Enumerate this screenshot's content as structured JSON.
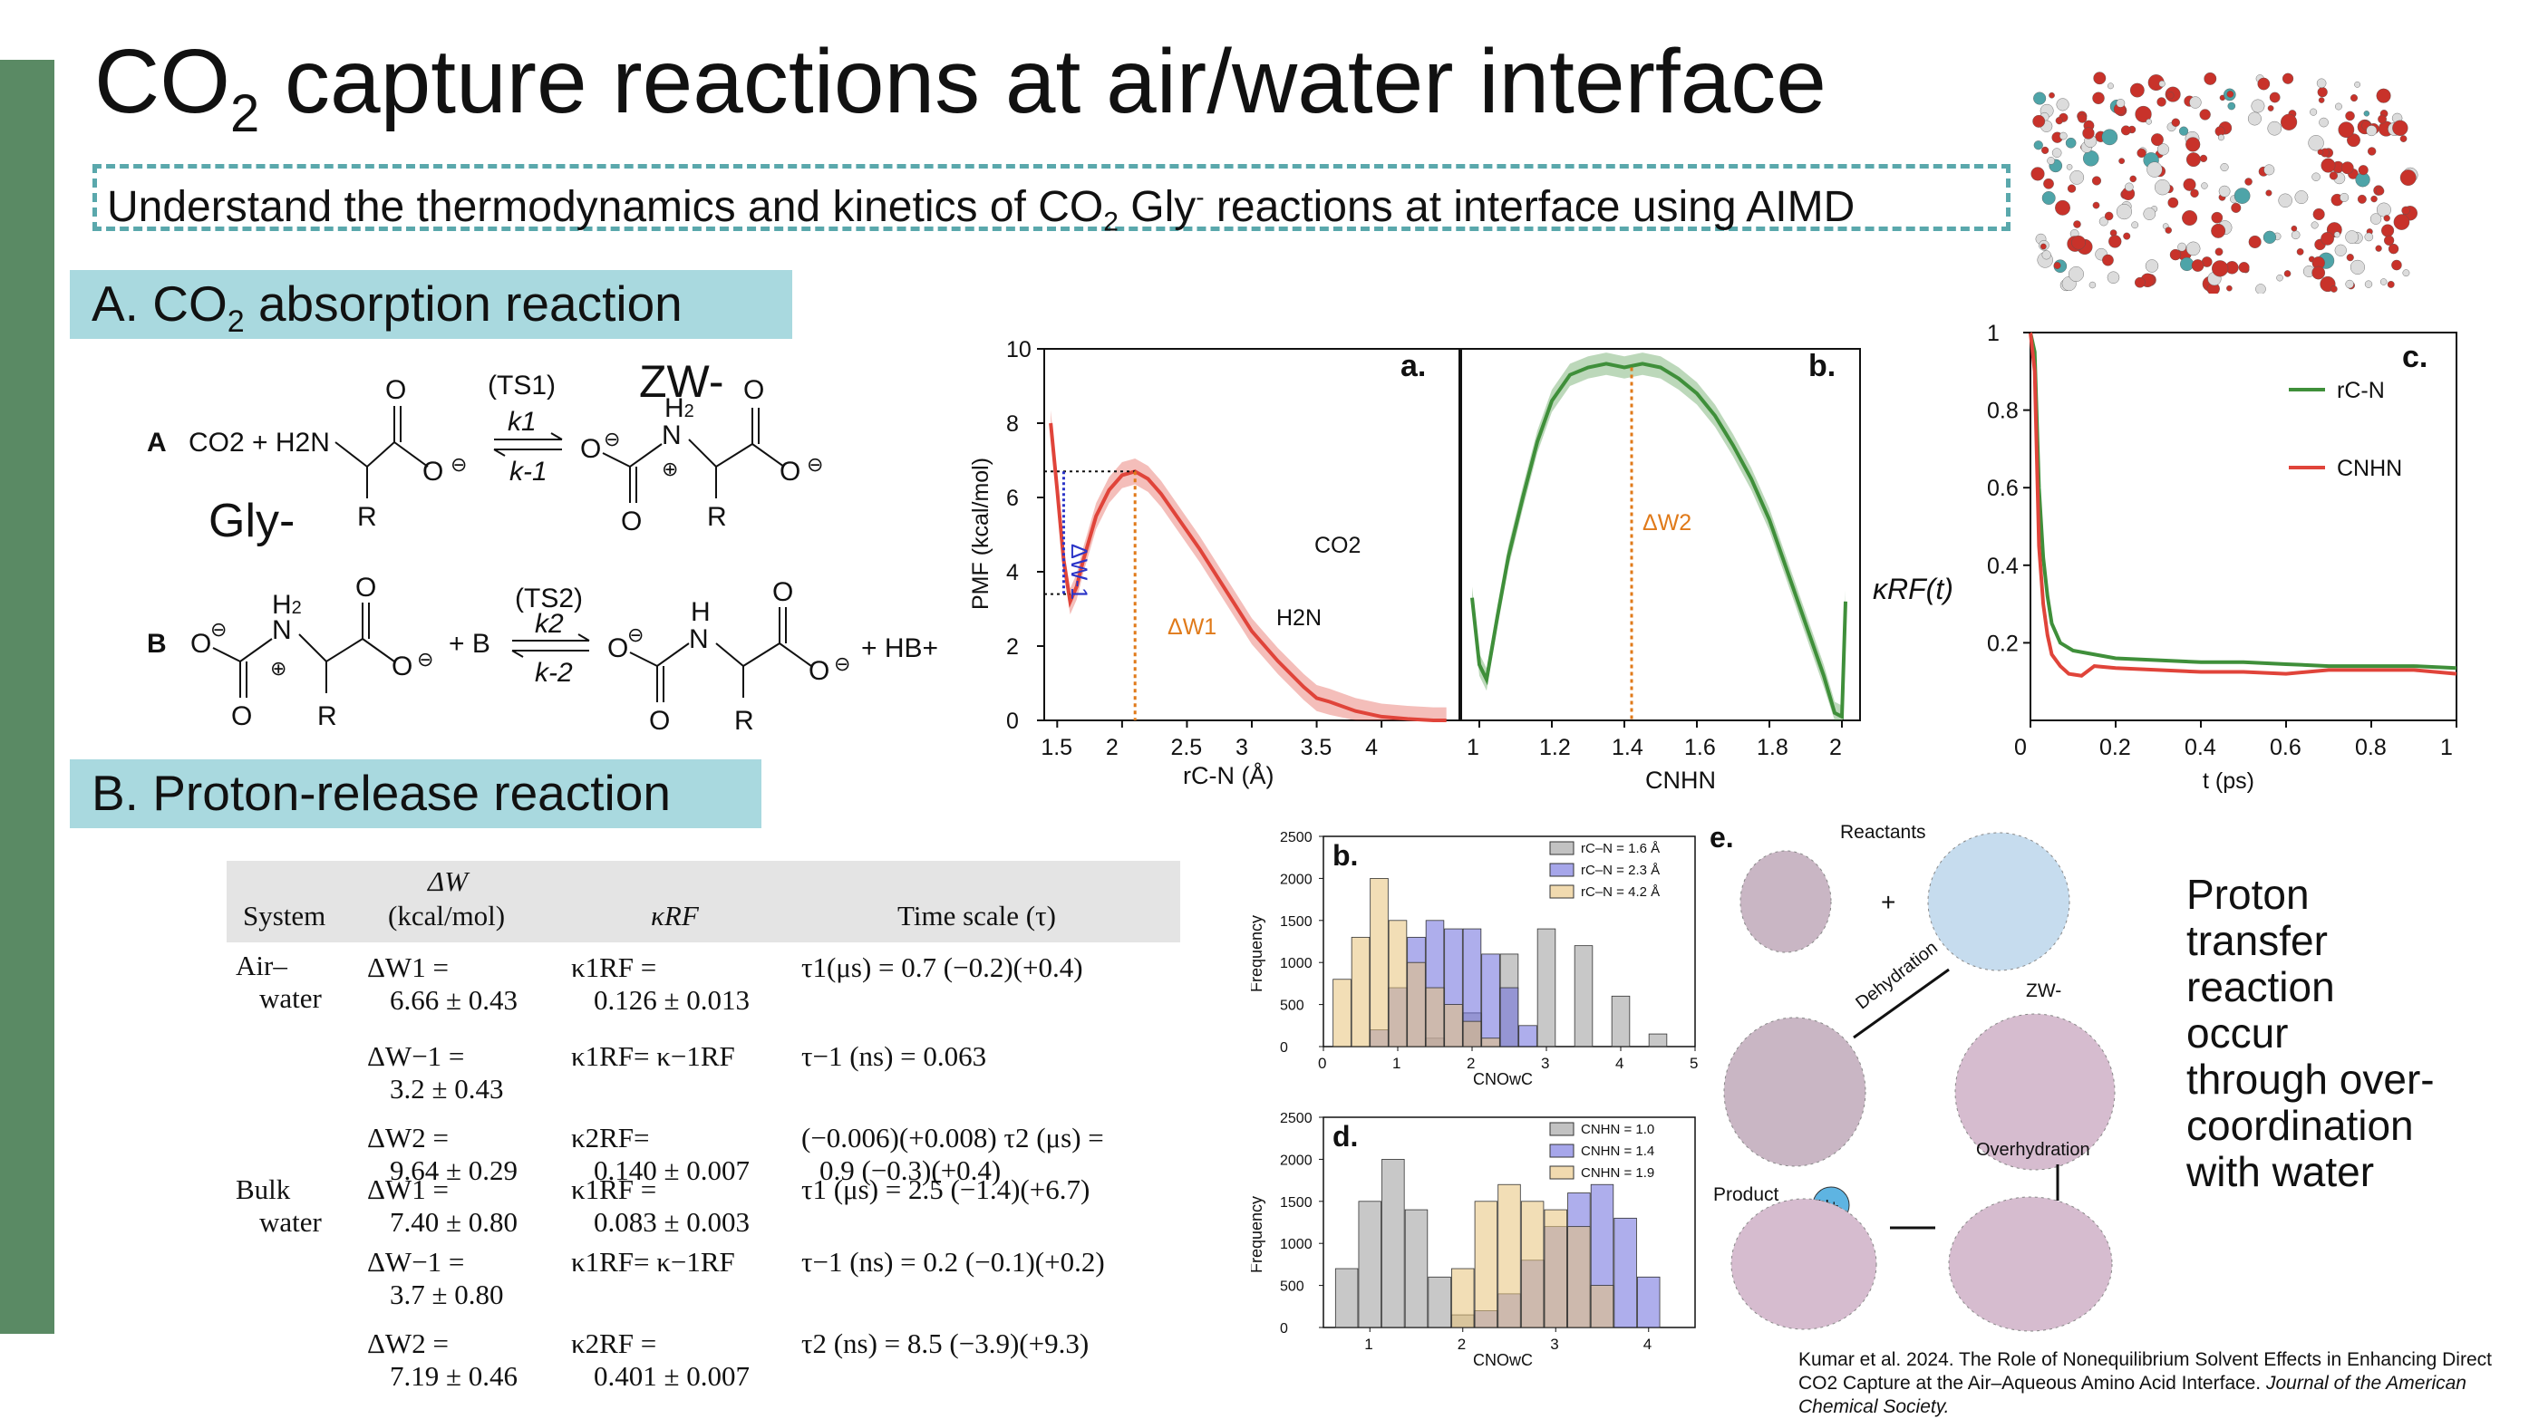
{
  "slide": {
    "title_pre": "CO",
    "title_sub": "2",
    "title_post": " capture reactions at air/water interface",
    "subtitle_pre": "Understand the thermodynamics and kinetics of CO",
    "subtitle_sub": "2",
    "subtitle_mid": " Gly",
    "subtitle_sup": "-",
    "subtitle_post": " reactions at interface using AIMD",
    "section_a_pre": "A. CO",
    "section_a_sub": "2",
    "section_a_post": " absorption reaction",
    "section_b": "B. Proton-release reaction",
    "proton_text": [
      "Proton",
      "transfer",
      "reaction",
      "occur",
      "through over-",
      "coordination",
      "with water"
    ],
    "citation_main": "Kumar et al. 2024. The Role of Nonequilibrium Solvent Effects in Enhancing Direct CO2 Capture at the Air–Aqueous Amino Acid Interface. ",
    "citation_journal": "Journal of the American Chemical Society."
  },
  "reactions": {
    "a_label": "A",
    "b_label": "B",
    "zw_label": "ZW-",
    "gly_label": "Gly-",
    "ts1": "(TS1)",
    "k1": "k1",
    "km1": "k-1",
    "ts2": "(TS2)",
    "k2": "k2",
    "km2": "k-2",
    "a_reactants": "CO2 + H2N",
    "b_plus_b": "+ B",
    "b_product_tail": "+ HB+"
  },
  "table": {
    "headers": [
      "System",
      "ΔW",
      "(kcal/mol)",
      "κRF",
      "Time scale (τ)"
    ],
    "systems": [
      "Air–",
      "water",
      "Bulk",
      "water"
    ],
    "rows": [
      {
        "dw1": "ΔW1 =",
        "dw2": "6.66 ± 0.43",
        "k1": "κ1RF =",
        "k2": "0.126 ± 0.013",
        "t1": "τ1(μs) = 0.7 (−0.2)(+0.4)",
        "t2": ""
      },
      {
        "dw1": "ΔW−1 =",
        "dw2": "3.2 ± 0.43",
        "k1": "κ1RF= κ−1RF",
        "k2": "",
        "t1": "τ−1 (ns) = 0.063",
        "t2": ""
      },
      {
        "dw1": "ΔW2 =",
        "dw2": "9.64 ± 0.29",
        "k1": "κ2RF=",
        "k2": "0.140 ± 0.007",
        "t1": "(−0.006)(+0.008) τ2 (μs) =",
        "t2": "0.9 (−0.3)(+0.4)"
      },
      {
        "dw1": "ΔW1 =",
        "dw2": "7.40 ± 0.80",
        "k1": "κ1RF =",
        "k2": "0.083 ± 0.003",
        "t1": "τ1 (μs) = 2.5 (−1.4)(+6.7)",
        "t2": ""
      },
      {
        "dw1": "ΔW−1 =",
        "dw2": "3.7 ± 0.80",
        "k1": "κ1RF= κ−1RF",
        "k2": "",
        "t1": "τ−1 (ns) = 0.2 (−0.1)(+0.2)",
        "t2": ""
      },
      {
        "dw1": "ΔW2 =",
        "dw2": "7.19 ± 0.46",
        "k1": "κ2RF =",
        "k2": "0.401 ± 0.007",
        "t1": "τ2 (ns) = 8.5 (−3.9)(+9.3)",
        "t2": ""
      }
    ]
  },
  "chart_data": [
    {
      "type": "area",
      "panel": "a.",
      "xlabel": "rC-N (Å)",
      "ylabel": "PMF (kcal/mol)",
      "xlim": [
        1.4,
        4.6
      ],
      "ylim": [
        0,
        10
      ],
      "xticks": [
        "1.5",
        "2",
        "2.5",
        "3",
        "3.5",
        "4"
      ],
      "yticks": [
        "0",
        "2",
        "4",
        "6",
        "8",
        "10"
      ],
      "series": [
        {
          "color": "#e0443a",
          "x": [
            1.45,
            1.5,
            1.55,
            1.6,
            1.65,
            1.7,
            1.8,
            1.9,
            2.0,
            2.1,
            2.2,
            2.3,
            2.4,
            2.6,
            2.8,
            3.0,
            3.2,
            3.4,
            3.5,
            3.6,
            3.8,
            4.0,
            4.2,
            4.4,
            4.5
          ],
          "y": [
            8.0,
            6.2,
            4.3,
            3.2,
            3.6,
            4.3,
            5.5,
            6.2,
            6.6,
            6.7,
            6.5,
            6.1,
            5.6,
            4.6,
            3.5,
            2.4,
            1.6,
            0.9,
            0.6,
            0.5,
            0.25,
            0.1,
            0.04,
            0.0,
            0.0
          ]
        }
      ],
      "annotations": [
        "ΔW-1",
        "ΔW1",
        "CO2",
        "H2N"
      ]
    },
    {
      "type": "area",
      "panel": "b.",
      "xlabel": "CNHN",
      "xlim": [
        0.95,
        2.05
      ],
      "ylim": [
        0,
        10
      ],
      "xticks": [
        "1",
        "1.2",
        "1.4",
        "1.6",
        "1.8",
        "2"
      ],
      "series": [
        {
          "color": "#3f8f3a",
          "x": [
            0.98,
            1.0,
            1.02,
            1.05,
            1.08,
            1.12,
            1.16,
            1.2,
            1.25,
            1.3,
            1.35,
            1.4,
            1.45,
            1.5,
            1.55,
            1.6,
            1.65,
            1.7,
            1.75,
            1.8,
            1.85,
            1.9,
            1.95,
            1.98,
            2.0,
            2.01
          ],
          "y": [
            3.3,
            1.5,
            1.1,
            2.8,
            4.4,
            6.0,
            7.5,
            8.6,
            9.3,
            9.5,
            9.6,
            9.5,
            9.6,
            9.5,
            9.2,
            8.8,
            8.2,
            7.4,
            6.5,
            5.4,
            4.0,
            2.6,
            1.2,
            0.2,
            0.1,
            3.2
          ]
        }
      ],
      "annotations": [
        "ΔW2"
      ]
    },
    {
      "type": "line",
      "panel": "c.",
      "xlabel": "t (ps)",
      "ylabel": "κRF(t)",
      "xlim": [
        0,
        1
      ],
      "ylim": [
        0,
        1
      ],
      "xticks": [
        "0",
        "0.2",
        "0.4",
        "0.6",
        "0.8",
        "1"
      ],
      "yticks": [
        "0.2",
        "0.4",
        "0.6",
        "0.8",
        "1"
      ],
      "series": [
        {
          "name": "rC-N",
          "color": "#3f8f3a",
          "x": [
            0.0,
            0.01,
            0.02,
            0.03,
            0.04,
            0.05,
            0.07,
            0.1,
            0.15,
            0.2,
            0.3,
            0.4,
            0.5,
            0.6,
            0.7,
            0.8,
            0.9,
            1.0
          ],
          "y": [
            1.0,
            0.95,
            0.6,
            0.42,
            0.32,
            0.25,
            0.2,
            0.18,
            0.17,
            0.16,
            0.155,
            0.15,
            0.15,
            0.145,
            0.14,
            0.14,
            0.14,
            0.135
          ]
        },
        {
          "name": "CNHN",
          "color": "#e0443a",
          "x": [
            0.0,
            0.01,
            0.02,
            0.03,
            0.04,
            0.05,
            0.07,
            0.09,
            0.12,
            0.15,
            0.2,
            0.3,
            0.4,
            0.5,
            0.6,
            0.7,
            0.8,
            0.9,
            1.0
          ],
          "y": [
            1.0,
            0.9,
            0.45,
            0.3,
            0.22,
            0.17,
            0.14,
            0.12,
            0.115,
            0.14,
            0.135,
            0.13,
            0.125,
            0.125,
            0.12,
            0.13,
            0.13,
            0.13,
            0.12
          ]
        }
      ]
    },
    {
      "type": "bar",
      "panel": "b.",
      "ylabel": "Frequency",
      "xlabel": "CNOwC",
      "xlim": [
        0,
        5
      ],
      "ylim": [
        0,
        2500
      ],
      "xticks": [
        "0",
        "1",
        "2",
        "3",
        "4",
        "5"
      ],
      "yticks": [
        "0",
        "500",
        "1000",
        "1500",
        "2000",
        "2500"
      ],
      "series": [
        {
          "name": "rC–N = 1.6 Å",
          "color": "#9a9a9a",
          "x": [
            1.5,
            2.0,
            2.5,
            3.0,
            3.5,
            4.0,
            4.5
          ],
          "values": [
            100,
            400,
            1100,
            1400,
            1200,
            600,
            150
          ]
        },
        {
          "name": "rC–N = 2.3 Å",
          "color": "#6b6bdc",
          "x": [
            0.75,
            1.0,
            1.25,
            1.5,
            1.75,
            2.0,
            2.25,
            2.5,
            2.75
          ],
          "values": [
            200,
            700,
            1300,
            1500,
            1400,
            1400,
            1100,
            700,
            250
          ]
        },
        {
          "name": "rC–N = 4.2 Å",
          "color": "#e8c27a",
          "x": [
            0.25,
            0.5,
            0.75,
            1.0,
            1.25,
            1.5,
            1.75,
            2.0,
            2.25
          ],
          "values": [
            800,
            1300,
            2000,
            1500,
            1000,
            700,
            500,
            300,
            100
          ]
        }
      ]
    },
    {
      "type": "bar",
      "panel": "d.",
      "ylabel": "Frequency",
      "xlabel": "CNOwC",
      "xlim": [
        0.5,
        4.5
      ],
      "ylim": [
        0,
        2500
      ],
      "xticks": [
        "1",
        "2",
        "3",
        "4"
      ],
      "yticks": [
        "0",
        "500",
        "1000",
        "1500",
        "2000",
        "2500"
      ],
      "series": [
        {
          "name": "CNHN = 1.0",
          "color": "#9a9a9a",
          "x": [
            0.75,
            1.0,
            1.25,
            1.5,
            1.75,
            2.0
          ],
          "values": [
            700,
            1500,
            2000,
            1400,
            600,
            150
          ]
        },
        {
          "name": "CNHN = 1.4",
          "color": "#6b6bdc",
          "x": [
            2.25,
            2.5,
            2.75,
            3.0,
            3.25,
            3.5,
            3.75,
            4.0
          ],
          "values": [
            200,
            400,
            800,
            1200,
            1600,
            1700,
            1300,
            600
          ]
        },
        {
          "name": "CNHN = 1.9",
          "color": "#e8c27a",
          "x": [
            2.0,
            2.25,
            2.5,
            2.75,
            3.0,
            3.25,
            3.5
          ],
          "values": [
            700,
            1500,
            1700,
            1500,
            1400,
            1200,
            500
          ]
        }
      ]
    }
  ],
  "schematic": {
    "panel_label": "e.",
    "reactants": "Reactants",
    "plus": "+",
    "dehydration": "Dehydration",
    "zw": "ZW-",
    "overhydration": "Overhydration",
    "product": "Product",
    "hplus": "H+"
  }
}
